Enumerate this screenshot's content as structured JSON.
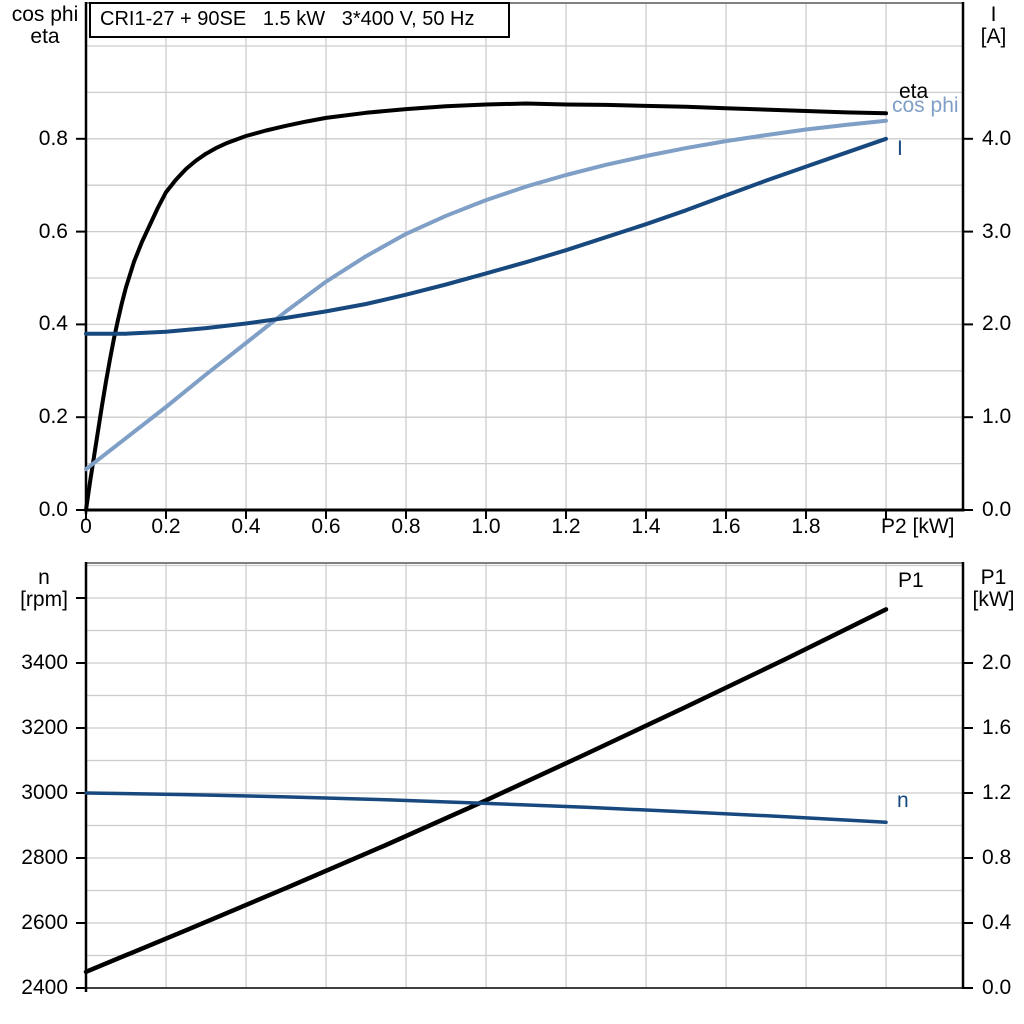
{
  "title_box": "CRI1-27 + 90SE   1.5 kW   3*400 V, 50 Hz",
  "colors": {
    "eta": "#000000",
    "cos_phi": "#7f9fc6",
    "current": "#17497e",
    "speed": "#17497e",
    "p1": "#000000",
    "grid": "#cccccc",
    "frame_top": "#808080",
    "axis": "#000000"
  },
  "chart_data": [
    {
      "type": "line",
      "title": "CRI1-27 + 90SE   1.5 kW   3*400 V, 50 Hz",
      "xlabel": "P2 [kW]",
      "xlim": [
        0,
        2.1925
      ],
      "x_grid_values": [
        0.2,
        0.4,
        0.6,
        0.8,
        1.0,
        1.2,
        1.4,
        1.6,
        1.8,
        2.0
      ],
      "x_tick_marks": [
        0,
        0.2,
        0.4,
        0.6,
        0.8,
        1.0,
        1.2,
        1.4,
        1.6,
        1.8,
        2.0
      ],
      "x_tick_values": [
        0,
        0.2,
        0.4,
        0.6,
        0.8,
        1.0,
        1.2,
        1.4,
        1.6,
        1.8
      ],
      "x_tick_labels": [
        "0",
        "0.2",
        "0.4",
        "0.6",
        "0.8",
        "1.0",
        "1.2",
        "1.4",
        "1.6",
        "1.8"
      ],
      "left_axis": {
        "title": [
          "cos phi",
          "eta"
        ],
        "lim": [
          0,
          1.0927
        ],
        "tick_values": [
          0,
          0.2,
          0.4,
          0.6,
          0.8
        ],
        "tick_labels": [
          "0.0",
          "0.2",
          "0.4",
          "0.6",
          "0.8"
        ],
        "extra_tick_marks": [],
        "grid_values": [
          0.1,
          0.2,
          0.3,
          0.4,
          0.5,
          0.6,
          0.7,
          0.8,
          0.9,
          1.0
        ]
      },
      "right_axis": {
        "title": [
          "I",
          "[A]"
        ],
        "lim": [
          0,
          5.4634
        ],
        "tick_values": [
          0,
          1,
          2,
          3,
          4
        ],
        "tick_labels": [
          "0.0",
          "1.0",
          "2.0",
          "3.0",
          "4.0"
        ]
      },
      "series": [
        {
          "name": "eta",
          "axis": "left",
          "color": "#000000",
          "x": [
            0,
            0.01,
            0.02,
            0.03,
            0.04,
            0.05,
            0.06,
            0.07,
            0.08,
            0.09,
            0.1,
            0.12,
            0.14,
            0.16,
            0.18,
            0.2,
            0.225,
            0.25,
            0.275,
            0.3,
            0.325,
            0.35,
            0.4,
            0.45,
            0.5,
            0.55,
            0.6,
            0.7,
            0.8,
            0.9,
            1.0,
            1.1,
            1.2,
            1.3,
            1.4,
            1.5,
            1.6,
            1.7,
            1.8,
            1.9,
            2.0
          ],
          "y": [
            0,
            0.06,
            0.115,
            0.17,
            0.225,
            0.277,
            0.325,
            0.37,
            0.41,
            0.447,
            0.48,
            0.535,
            0.578,
            0.615,
            0.652,
            0.685,
            0.712,
            0.735,
            0.753,
            0.768,
            0.78,
            0.79,
            0.806,
            0.818,
            0.828,
            0.837,
            0.845,
            0.856,
            0.864,
            0.87,
            0.874,
            0.876,
            0.874,
            0.873,
            0.871,
            0.869,
            0.866,
            0.863,
            0.86,
            0.857,
            0.855
          ]
        },
        {
          "name": "cos phi",
          "axis": "left",
          "color": "#7f9fc6",
          "x": [
            0,
            0.1,
            0.2,
            0.3,
            0.4,
            0.5,
            0.6,
            0.7,
            0.8,
            0.9,
            1.0,
            1.1,
            1.2,
            1.3,
            1.4,
            1.5,
            1.6,
            1.7,
            1.8,
            1.9,
            2.0
          ],
          "y": [
            0.088,
            0.155,
            0.222,
            0.292,
            0.36,
            0.428,
            0.492,
            0.547,
            0.595,
            0.634,
            0.668,
            0.697,
            0.722,
            0.744,
            0.763,
            0.78,
            0.795,
            0.808,
            0.82,
            0.83,
            0.839
          ]
        },
        {
          "name": "I",
          "axis": "right",
          "color": "#17497e",
          "x": [
            0,
            0.1,
            0.2,
            0.3,
            0.4,
            0.5,
            0.6,
            0.7,
            0.8,
            0.9,
            1.0,
            1.1,
            1.2,
            1.3,
            1.4,
            1.5,
            1.6,
            1.7,
            1.8,
            1.9,
            2.0
          ],
          "y": [
            1.9,
            1.9,
            1.92,
            1.96,
            2.01,
            2.07,
            2.14,
            2.22,
            2.32,
            2.43,
            2.55,
            2.67,
            2.8,
            2.94,
            3.08,
            3.23,
            3.39,
            3.55,
            3.7,
            3.85,
            4.0
          ]
        }
      ]
    },
    {
      "type": "line",
      "title": "",
      "xlabel": "",
      "xlim": [
        0,
        2.1925
      ],
      "x_grid_values": [
        0.2,
        0.4,
        0.6,
        0.8,
        1.0,
        1.2,
        1.4,
        1.6,
        1.8,
        2.0
      ],
      "x_tick_marks": [],
      "x_tick_values": [],
      "x_tick_labels": [],
      "left_axis": {
        "title": [
          "n",
          "[rpm]"
        ],
        "lim": [
          2400,
          3707.7
        ],
        "tick_values": [
          2400,
          2600,
          2800,
          3000,
          3200,
          3400
        ],
        "tick_labels": [
          "2400",
          "2600",
          "2800",
          "3000",
          "3200",
          "3400"
        ],
        "extra_tick_marks": [
          3600
        ],
        "grid_values": [
          2500,
          2600,
          2700,
          2800,
          2900,
          3000,
          3100,
          3200,
          3300,
          3400,
          3500,
          3600,
          3700
        ]
      },
      "right_axis": {
        "title": [
          "P1",
          "[kW]"
        ],
        "lim": [
          0,
          2.6154
        ],
        "tick_values": [
          0,
          0.4,
          0.8,
          1.2,
          1.6,
          2.0
        ],
        "tick_labels": [
          "0.0",
          "0.4",
          "0.8",
          "1.2",
          "1.6",
          "2.0"
        ]
      },
      "series": [
        {
          "name": "P1",
          "axis": "right",
          "color": "#000000",
          "x": [
            0,
            0.25,
            0.5,
            0.75,
            1.0,
            1.25,
            1.5,
            1.75,
            2.0
          ],
          "y": [
            0.1,
            0.355,
            0.615,
            0.88,
            1.155,
            1.44,
            1.73,
            2.025,
            2.33
          ]
        },
        {
          "name": "n",
          "axis": "left",
          "color": "#17497e",
          "x": [
            0,
            0.25,
            0.5,
            0.75,
            1.0,
            1.25,
            1.5,
            1.75,
            2.0
          ],
          "y": [
            3000,
            2995,
            2988,
            2979,
            2968,
            2956,
            2942,
            2927,
            2910
          ]
        }
      ]
    }
  ]
}
